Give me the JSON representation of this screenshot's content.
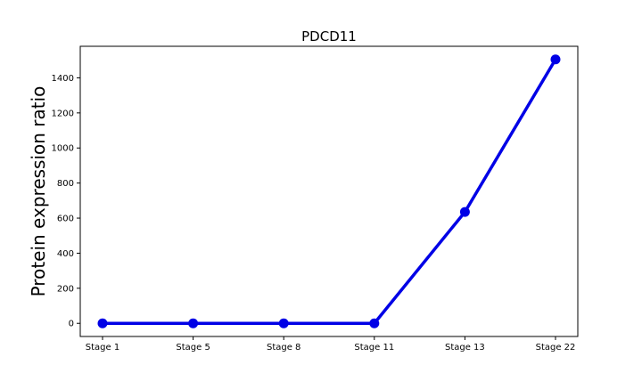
{
  "chart_data": {
    "type": "line",
    "title": "PDCD11",
    "xlabel": "",
    "ylabel": "Protein expression ratio",
    "categories": [
      "Stage 1",
      "Stage 5",
      "Stage 8",
      "Stage 11",
      "Stage 13",
      "Stage 22"
    ],
    "series": [
      {
        "values": [
          0,
          0,
          0,
          0,
          635,
          1505
        ],
        "color": "#0000e6"
      }
    ],
    "yticks": [
      0,
      200,
      400,
      600,
      800,
      1000,
      1200,
      1400
    ],
    "ylim": [
      -75,
      1580
    ],
    "grid": false,
    "legend": "none"
  }
}
